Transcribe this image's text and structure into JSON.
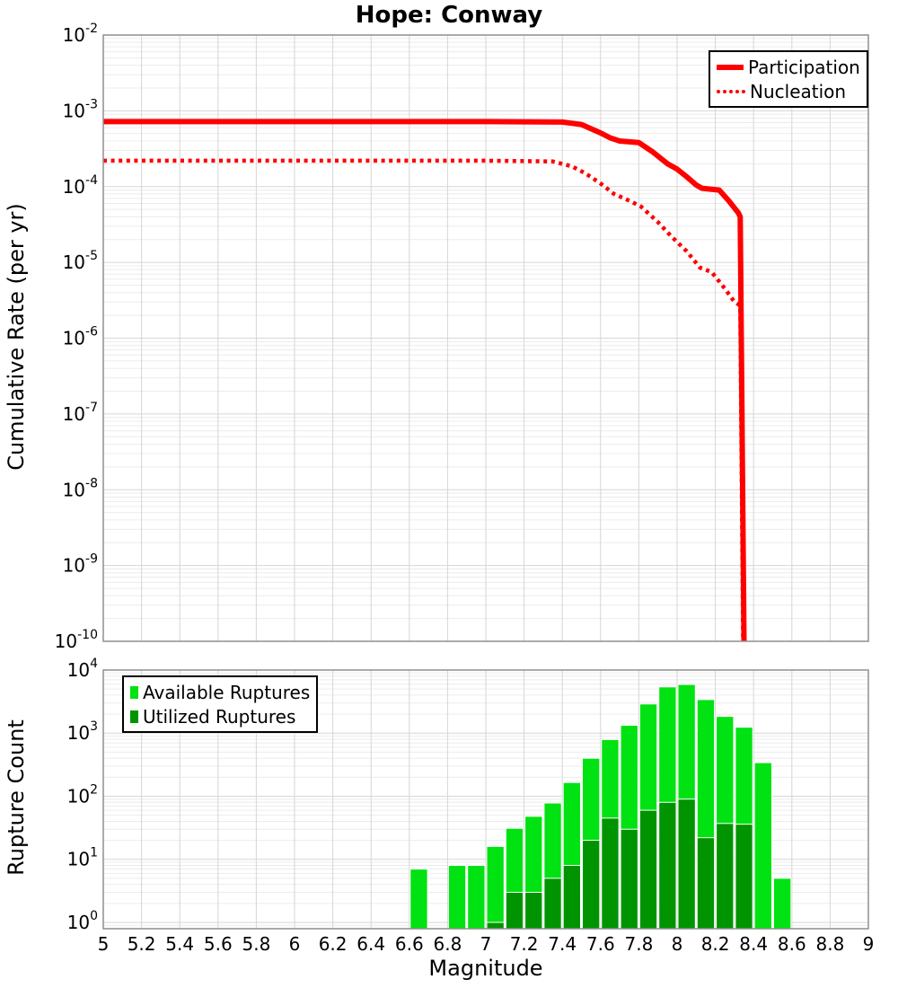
{
  "title": "Hope: Conway",
  "colors": {
    "participation_line": "#ff0000",
    "nucleation_line": "#ff0000",
    "available_ruptures": "#00e211",
    "utilized_ruptures": "#009400"
  },
  "chart_data": [
    {
      "type": "line",
      "title": "Hope: Conway",
      "xlabel": "Magnitude",
      "ylabel": "Cumulative Rate (per yr)",
      "xlim": [
        5,
        9
      ],
      "ylim": [
        1e-10,
        0.01
      ],
      "ylog_exponent_range": [
        -10,
        -2
      ],
      "grid": true,
      "legend_position": "top-right",
      "xtick_labels": [
        "5",
        "5.2",
        "5.4",
        "5.6",
        "5.8",
        "6",
        "6.2",
        "6.4",
        "6.6",
        "6.8",
        "7",
        "7.2",
        "7.4",
        "7.6",
        "7.8",
        "8",
        "8.2",
        "8.4",
        "8.6",
        "8.8",
        "9"
      ],
      "ytick_exponents": [
        -2,
        -3,
        -4,
        -5,
        -6,
        -7,
        -8,
        -9,
        -10
      ],
      "series": [
        {
          "name": "Participation",
          "color": "#ff0000",
          "style": "solid",
          "points": [
            [
              5.0,
              0.00072
            ],
            [
              7.0,
              0.00072
            ],
            [
              7.4,
              0.00071
            ],
            [
              7.5,
              0.00066
            ],
            [
              7.6,
              0.00051
            ],
            [
              7.65,
              0.00044
            ],
            [
              7.7,
              0.0004
            ],
            [
              7.8,
              0.00038
            ],
            [
              7.87,
              0.00029
            ],
            [
              7.95,
              0.0002
            ],
            [
              8.0,
              0.00017
            ],
            [
              8.05,
              0.000135
            ],
            [
              8.1,
              0.000105
            ],
            [
              8.13,
              9.5e-05
            ],
            [
              8.22,
              9e-05
            ],
            [
              8.27,
              6.5e-05
            ],
            [
              8.32,
              4.5e-05
            ],
            [
              8.33,
              4e-05
            ],
            [
              8.35,
              1e-10
            ]
          ]
        },
        {
          "name": "Nucleation",
          "color": "#ff0000",
          "style": "dotted",
          "points": [
            [
              5.0,
              0.00022
            ],
            [
              7.0,
              0.00022
            ],
            [
              7.35,
              0.000215
            ],
            [
              7.45,
              0.000185
            ],
            [
              7.52,
              0.00015
            ],
            [
              7.6,
              0.00011
            ],
            [
              7.67,
              8e-05
            ],
            [
              7.75,
              6.5e-05
            ],
            [
              7.81,
              5.5e-05
            ],
            [
              7.9,
              3.4e-05
            ],
            [
              7.97,
              2.2e-05
            ],
            [
              8.05,
              1.4e-05
            ],
            [
              8.12,
              8.5e-06
            ],
            [
              8.18,
              7.5e-06
            ],
            [
              8.25,
              4.5e-06
            ],
            [
              8.3,
              3e-06
            ],
            [
              8.33,
              2.7e-06
            ],
            [
              8.345,
              1e-10
            ]
          ]
        }
      ]
    },
    {
      "type": "bar",
      "xlabel": "Magnitude",
      "ylabel": "Rupture Count",
      "xlim": [
        5,
        9
      ],
      "ylim": [
        1,
        10000
      ],
      "ylog_exponent_range": [
        -0.1,
        4
      ],
      "grid": true,
      "legend_position": "top-left",
      "bin_width": 0.1,
      "xtick_labels": [
        "5",
        "5.2",
        "5.4",
        "5.6",
        "5.8",
        "6",
        "6.2",
        "6.4",
        "6.6",
        "6.8",
        "7",
        "7.2",
        "7.4",
        "7.6",
        "7.8",
        "8",
        "8.2",
        "8.4",
        "8.6",
        "8.8",
        "9"
      ],
      "ytick_exponents": [
        0,
        1,
        2,
        3,
        4
      ],
      "bin_starts": [
        6.6,
        6.7,
        6.8,
        6.9,
        7.0,
        7.1,
        7.2,
        7.3,
        7.4,
        7.5,
        7.6,
        7.7,
        7.8,
        7.9,
        8.0,
        8.1,
        8.2,
        8.3,
        8.4,
        8.5
      ],
      "series": [
        {
          "name": "Available Ruptures",
          "color": "#00e211",
          "values": [
            7,
            0,
            8,
            8,
            16,
            31,
            48,
            78,
            165,
            400,
            790,
            1330,
            2900,
            5400,
            5900,
            3400,
            1840,
            1240,
            340,
            5
          ]
        },
        {
          "name": "Utilized Ruptures",
          "color": "#009400",
          "values": [
            0,
            0,
            0,
            0,
            1,
            3,
            3,
            5,
            8,
            20,
            45,
            30,
            60,
            80,
            90,
            22,
            37,
            36,
            0,
            0
          ]
        }
      ]
    }
  ]
}
